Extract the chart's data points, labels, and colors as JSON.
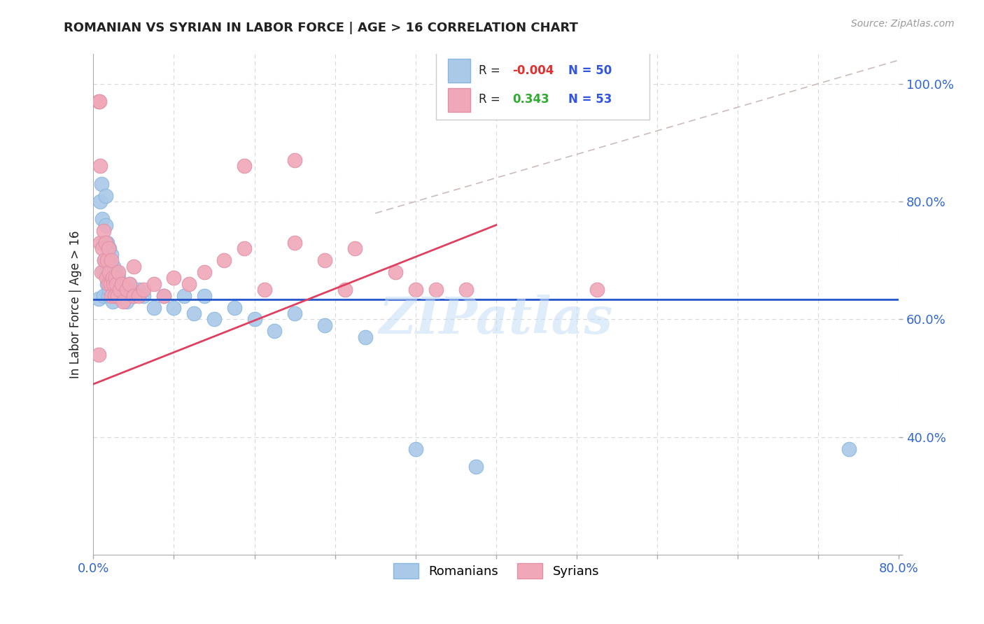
{
  "title": "ROMANIAN VS SYRIAN IN LABOR FORCE | AGE > 16 CORRELATION CHART",
  "source_text": "Source: ZipAtlas.com",
  "ylabel": "In Labor Force | Age > 16",
  "xlim": [
    0.0,
    0.8
  ],
  "ylim": [
    0.2,
    1.05
  ],
  "xticks": [
    0.0,
    0.08,
    0.16,
    0.24,
    0.32,
    0.4,
    0.48,
    0.56,
    0.64,
    0.72,
    0.8
  ],
  "yticks": [
    0.2,
    0.4,
    0.6,
    0.8,
    1.0
  ],
  "blue_R": -0.004,
  "blue_N": 50,
  "pink_R": 0.343,
  "pink_N": 53,
  "blue_color": "#aac8e8",
  "pink_color": "#f0a8b8",
  "blue_line_color": "#2255cc",
  "pink_line_color": "#e04060",
  "dash_line_color": "#ccbbbb",
  "watermark": "ZIPatlas",
  "blue_line_y0": 0.634,
  "blue_line_y1": 0.634,
  "pink_line_y0": 0.49,
  "pink_line_y1": 0.76,
  "diag_line_x0": 0.28,
  "diag_line_y0": 0.78,
  "diag_line_x1": 0.8,
  "diag_line_y1": 1.04,
  "romanians_x": [
    0.005,
    0.007,
    0.008,
    0.009,
    0.01,
    0.01,
    0.01,
    0.011,
    0.012,
    0.012,
    0.013,
    0.014,
    0.014,
    0.015,
    0.015,
    0.016,
    0.016,
    0.017,
    0.018,
    0.018,
    0.019,
    0.02,
    0.021,
    0.022,
    0.023,
    0.024,
    0.025,
    0.028,
    0.03,
    0.033,
    0.036,
    0.04,
    0.045,
    0.05,
    0.06,
    0.07,
    0.08,
    0.09,
    0.1,
    0.11,
    0.12,
    0.14,
    0.16,
    0.18,
    0.2,
    0.23,
    0.27,
    0.32,
    0.38,
    0.75
  ],
  "romanians_y": [
    0.635,
    0.8,
    0.83,
    0.77,
    0.73,
    0.68,
    0.64,
    0.7,
    0.76,
    0.81,
    0.68,
    0.73,
    0.66,
    0.7,
    0.64,
    0.72,
    0.65,
    0.67,
    0.71,
    0.66,
    0.63,
    0.69,
    0.66,
    0.65,
    0.68,
    0.64,
    0.67,
    0.65,
    0.64,
    0.63,
    0.66,
    0.64,
    0.65,
    0.64,
    0.62,
    0.64,
    0.62,
    0.64,
    0.61,
    0.64,
    0.6,
    0.62,
    0.6,
    0.58,
    0.61,
    0.59,
    0.57,
    0.38,
    0.35,
    0.38
  ],
  "syrians_x": [
    0.005,
    0.006,
    0.007,
    0.008,
    0.009,
    0.01,
    0.011,
    0.012,
    0.013,
    0.014,
    0.015,
    0.015,
    0.016,
    0.017,
    0.018,
    0.018,
    0.019,
    0.02,
    0.021,
    0.022,
    0.023,
    0.024,
    0.025,
    0.026,
    0.028,
    0.03,
    0.033,
    0.036,
    0.04,
    0.045,
    0.05,
    0.06,
    0.07,
    0.08,
    0.095,
    0.11,
    0.13,
    0.15,
    0.17,
    0.2,
    0.23,
    0.26,
    0.3,
    0.34,
    0.37,
    0.005,
    0.32,
    0.007,
    0.04,
    0.15,
    0.2,
    0.25,
    0.5
  ],
  "syrians_y": [
    0.97,
    0.97,
    0.73,
    0.68,
    0.72,
    0.75,
    0.7,
    0.73,
    0.67,
    0.7,
    0.66,
    0.72,
    0.68,
    0.66,
    0.7,
    0.64,
    0.67,
    0.66,
    0.64,
    0.67,
    0.66,
    0.64,
    0.68,
    0.65,
    0.66,
    0.63,
    0.65,
    0.66,
    0.64,
    0.64,
    0.65,
    0.66,
    0.64,
    0.67,
    0.66,
    0.68,
    0.7,
    0.72,
    0.65,
    0.73,
    0.7,
    0.72,
    0.68,
    0.65,
    0.65,
    0.54,
    0.65,
    0.86,
    0.69,
    0.86,
    0.87,
    0.65,
    0.65
  ]
}
